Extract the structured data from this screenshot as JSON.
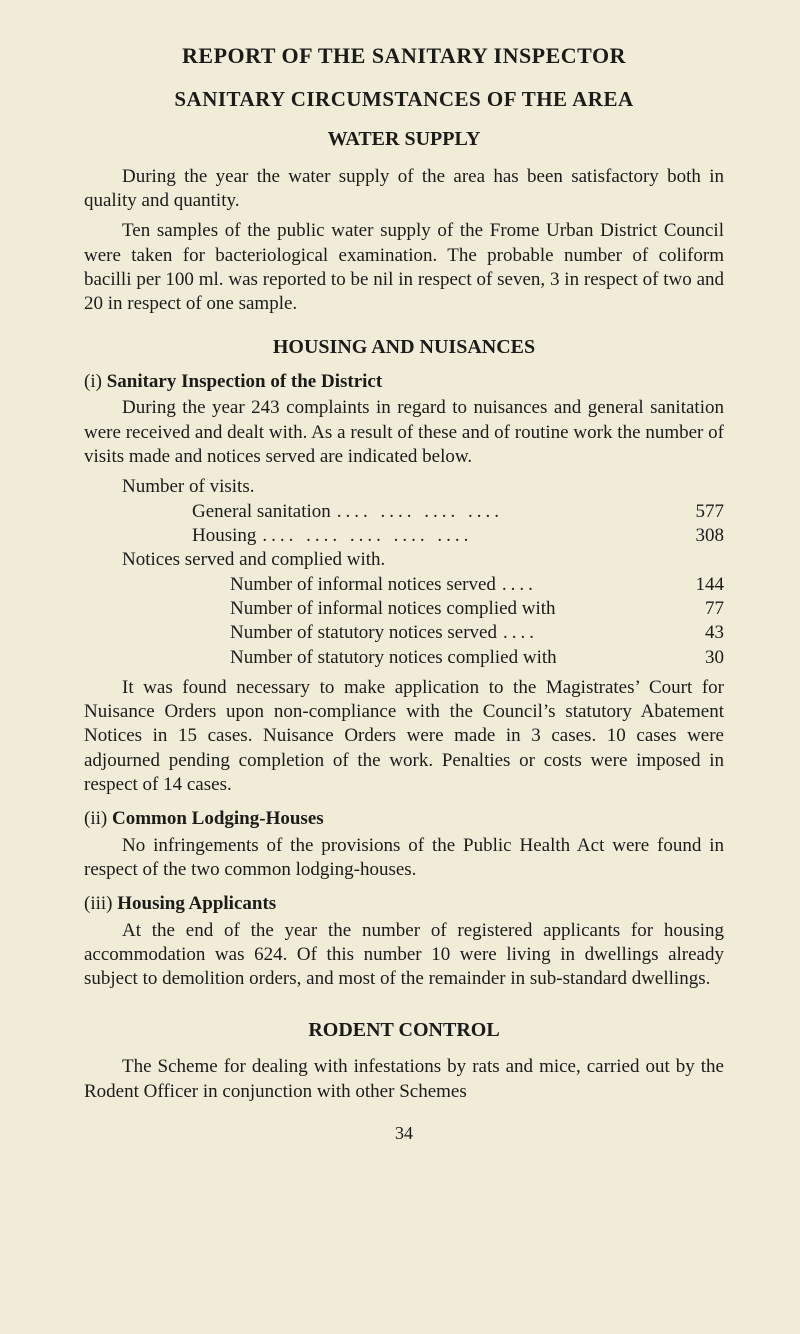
{
  "colors": {
    "page_bg": "#f0ecd8",
    "text": "#1b1b18"
  },
  "typography": {
    "body_fontsize_pt": 14,
    "heading_fontsize_pt": 16,
    "font_family": "Times New Roman"
  },
  "header": {
    "title": "REPORT OF THE SANITARY INSPECTOR",
    "subtitle": "SANITARY CIRCUMSTANCES OF THE AREA",
    "section1": "WATER SUPPLY"
  },
  "water": {
    "p1": "During the year the water supply of the area has been satisfactory both in quality and quantity.",
    "p2": "Ten samples of the public water supply of the Frome Urban District Council were taken for bacteriological examination. The probable number of coliform bacilli per 100 ml. was reported to be nil in respect of seven, 3 in respect of two and 20 in respect of one sample."
  },
  "housing": {
    "heading": "HOUSING AND NUISANCES",
    "i_num": "(i) ",
    "i_title": "Sanitary Inspection of the District",
    "i_p1": "During the year 243 complaints in regard to nuisances and general sanitation were received and dealt with. As a result of these and of routine work the number of visits made and notices served are indicated below.",
    "visits_header": "Number of visits.",
    "rows_visits": [
      {
        "label": "General sanitation",
        "value": "577"
      },
      {
        "label": "Housing",
        "value": "308"
      }
    ],
    "notices_header": "Notices served and complied with.",
    "rows_notices": [
      {
        "label": "Number of informal notices served",
        "value": "144"
      },
      {
        "label": "Number of informal notices complied with",
        "value": "77"
      },
      {
        "label": "Number of statutory notices served",
        "value": "43"
      },
      {
        "label": "Number of statutory notices complied with",
        "value": "30"
      }
    ],
    "i_p2": "It was found necessary to make application to the Magistrates’ Court for Nuisance Orders upon non-compliance with the Council’s statutory Abatement Notices in 15 cases. Nuisance Orders were made in 3 cases. 10 cases were adjourned pending completion of the work. Penalties or costs were imposed in respect of 14 cases.",
    "ii_num": "(ii) ",
    "ii_title": "Common Lodging-Houses",
    "ii_p": "No infringements of the provisions of the Public Health Act were found in respect of the two common lodging-houses.",
    "iii_num": "(iii) ",
    "iii_title": "Housing Applicants",
    "iii_p": "At the end of the year the number of registered applicants for housing accommodation was 624. Of this number 10 were living in dwellings already subject to demolition orders, and most of the remainder in sub-standard dwellings."
  },
  "rodent": {
    "heading": "RODENT CONTROL",
    "p": "The Scheme for dealing with infestations by rats and mice, carried out by the Rodent Officer in conjunction with other Schemes"
  },
  "page_number": "34",
  "dots4": "....    ....    ....    ....",
  "dots5": "....    ....    ....    ....    ....",
  "dots1": "....",
  "empty": ""
}
